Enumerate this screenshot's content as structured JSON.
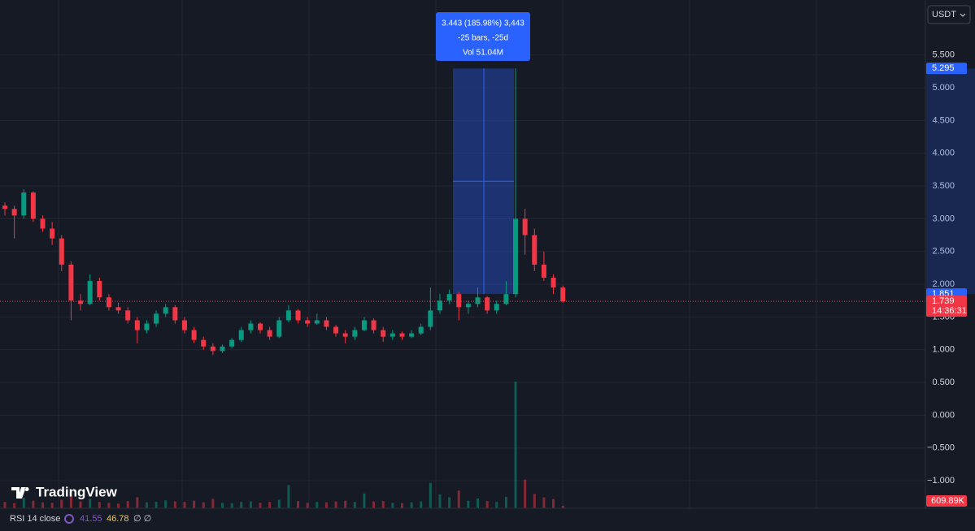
{
  "chart_data": {
    "type": "candlestick",
    "currency": "USDT",
    "brand": "TradingView",
    "up_color": "#089981",
    "down_color": "#f23645",
    "grid": true,
    "ylim": [
      -1.42,
      6.34
    ],
    "yticks": [
      {
        "value": 5.5,
        "label": "5.500"
      },
      {
        "value": 5,
        "label": "5.000"
      },
      {
        "value": 4.5,
        "label": "4.500"
      },
      {
        "value": 4,
        "label": "4.000"
      },
      {
        "value": 3.5,
        "label": "3.500"
      },
      {
        "value": 3,
        "label": "3.000"
      },
      {
        "value": 2.5,
        "label": "2.500"
      },
      {
        "value": 2,
        "label": "2.000"
      },
      {
        "value": 1.5,
        "label": "1.500"
      },
      {
        "value": 1,
        "label": "1.000"
      },
      {
        "value": 0.5,
        "label": "0.500"
      },
      {
        "value": 0,
        "label": "0.000"
      },
      {
        "value": -0.5,
        "label": "−0.500"
      },
      {
        "value": -1,
        "label": "−1.000"
      }
    ],
    "ohlc": [
      [
        3.2,
        3.25,
        3.05,
        3.15
      ],
      [
        3.15,
        3.2,
        2.7,
        3.05
      ],
      [
        3.05,
        3.45,
        3.0,
        3.4
      ],
      [
        3.4,
        3.42,
        2.95,
        3.0
      ],
      [
        3.0,
        3.05,
        2.8,
        2.85
      ],
      [
        2.85,
        2.95,
        2.6,
        2.7
      ],
      [
        2.7,
        2.75,
        2.2,
        2.3
      ],
      [
        2.3,
        2.35,
        1.45,
        1.75
      ],
      [
        1.75,
        1.85,
        1.6,
        1.7
      ],
      [
        1.7,
        2.15,
        1.68,
        2.05
      ],
      [
        2.05,
        2.1,
        1.75,
        1.8
      ],
      [
        1.8,
        1.85,
        1.6,
        1.65
      ],
      [
        1.65,
        1.72,
        1.55,
        1.6
      ],
      [
        1.6,
        1.65,
        1.4,
        1.45
      ],
      [
        1.45,
        1.5,
        1.1,
        1.3
      ],
      [
        1.3,
        1.45,
        1.25,
        1.4
      ],
      [
        1.4,
        1.6,
        1.35,
        1.55
      ],
      [
        1.55,
        1.7,
        1.5,
        1.65
      ],
      [
        1.65,
        1.68,
        1.4,
        1.45
      ],
      [
        1.45,
        1.5,
        1.25,
        1.3
      ],
      [
        1.3,
        1.35,
        1.1,
        1.15
      ],
      [
        1.15,
        1.2,
        1.0,
        1.05
      ],
      [
        1.05,
        1.1,
        0.92,
        0.98
      ],
      [
        0.98,
        1.08,
        0.95,
        1.05
      ],
      [
        1.05,
        1.18,
        1.02,
        1.15
      ],
      [
        1.15,
        1.35,
        1.12,
        1.3
      ],
      [
        1.3,
        1.45,
        1.25,
        1.4
      ],
      [
        1.4,
        1.42,
        1.25,
        1.3
      ],
      [
        1.3,
        1.35,
        1.15,
        1.2
      ],
      [
        1.2,
        1.5,
        1.18,
        1.45
      ],
      [
        1.45,
        1.68,
        1.42,
        1.6
      ],
      [
        1.6,
        1.62,
        1.4,
        1.45
      ],
      [
        1.45,
        1.5,
        1.35,
        1.4
      ],
      [
        1.4,
        1.55,
        1.38,
        1.45
      ],
      [
        1.45,
        1.5,
        1.3,
        1.35
      ],
      [
        1.35,
        1.38,
        1.2,
        1.25
      ],
      [
        1.25,
        1.3,
        1.1,
        1.2
      ],
      [
        1.2,
        1.35,
        1.15,
        1.3
      ],
      [
        1.3,
        1.5,
        1.28,
        1.45
      ],
      [
        1.45,
        1.48,
        1.25,
        1.3
      ],
      [
        1.3,
        1.35,
        1.12,
        1.2
      ],
      [
        1.2,
        1.3,
        1.15,
        1.25
      ],
      [
        1.25,
        1.28,
        1.15,
        1.2
      ],
      [
        1.2,
        1.3,
        1.18,
        1.25
      ],
      [
        1.25,
        1.4,
        1.22,
        1.35
      ],
      [
        1.35,
        1.95,
        1.3,
        1.6
      ],
      [
        1.6,
        1.85,
        1.55,
        1.75
      ],
      [
        1.75,
        1.92,
        1.7,
        1.85
      ],
      [
        1.85,
        1.88,
        1.45,
        1.65
      ],
      [
        1.65,
        1.75,
        1.55,
        1.7
      ],
      [
        1.7,
        1.95,
        1.65,
        1.8
      ],
      [
        1.8,
        1.82,
        1.55,
        1.6
      ],
      [
        1.6,
        1.75,
        1.55,
        1.7
      ],
      [
        1.7,
        2.05,
        1.68,
        1.85
      ],
      [
        1.85,
        5.295,
        1.8,
        3.0
      ],
      [
        3.0,
        3.15,
        2.45,
        2.75
      ],
      [
        2.75,
        2.85,
        2.2,
        2.3
      ],
      [
        2.3,
        2.5,
        2.05,
        2.1
      ],
      [
        2.1,
        2.15,
        1.85,
        1.95
      ],
      [
        1.95,
        1.98,
        1.72,
        1.739
      ]
    ],
    "volume": [
      1500000,
      1200000,
      2500000,
      1800000,
      1400000,
      1300000,
      2000000,
      3000000,
      1600000,
      2200000,
      1500000,
      1300000,
      1100000,
      1700000,
      2600000,
      1400000,
      1500000,
      1900000,
      1600000,
      1500000,
      1800000,
      1400000,
      2200000,
      1300000,
      1200000,
      1500000,
      1600000,
      1300000,
      1500000,
      2000000,
      5500000,
      1700000,
      1300000,
      1500000,
      1400000,
      1600000,
      1800000,
      1500000,
      3500000,
      1600000,
      1700000,
      1300000,
      1200000,
      1400000,
      1600000,
      6000000,
      3300000,
      2600000,
      4200000,
      1800000,
      2300000,
      1700000,
      1500000,
      2700000,
      30000000,
      6800000,
      3400000,
      2600000,
      2200000,
      609890
    ],
    "volume_last_label": "609.89K",
    "measure": {
      "top": 5.295,
      "bottom": 1.851,
      "lines": [
        "3.443 (185.98%) 3,443",
        "-25 bars, -25d",
        "Vol 51.04M"
      ]
    },
    "last_price": 1.739,
    "countdown": "14:36:31",
    "indicator": {
      "name": "RSI 14 close",
      "values": [
        41.55,
        46.78
      ],
      "extra": "∅ ∅"
    }
  }
}
